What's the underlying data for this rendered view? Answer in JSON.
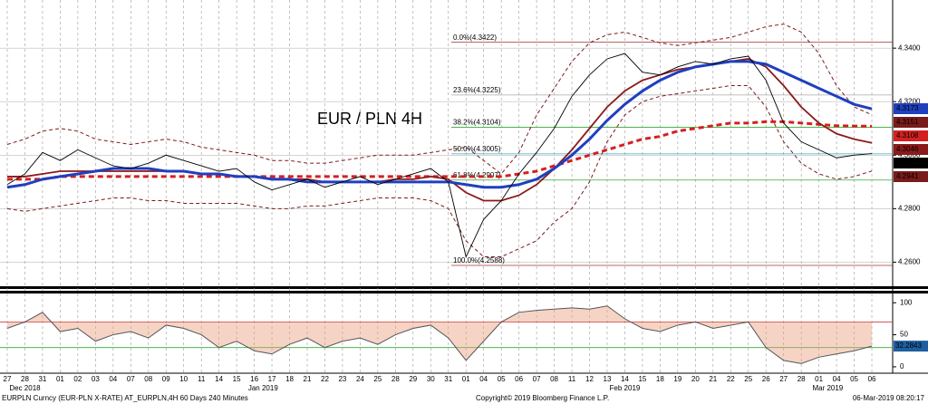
{
  "chart_data": {
    "type": "line",
    "title": "EUR / PLN 4H",
    "title_color": "#d40000",
    "categories": [
      "27",
      "28",
      "31",
      "01",
      "02",
      "03",
      "04",
      "07",
      "08",
      "09",
      "10",
      "11",
      "14",
      "15",
      "16",
      "17",
      "18",
      "21",
      "22",
      "23",
      "24",
      "25",
      "28",
      "29",
      "30",
      "31",
      "01",
      "04",
      "05",
      "06",
      "07",
      "08",
      "11",
      "12",
      "13",
      "14",
      "15",
      "18",
      "19",
      "20",
      "21",
      "22",
      "25",
      "26",
      "27",
      "28",
      "01",
      "04",
      "05",
      "06"
    ],
    "months": [
      "Dec 2018",
      "Jan 2019",
      "Feb 2019",
      "Mar 2019"
    ],
    "ylim": [
      4.251,
      4.358
    ],
    "yticks": [
      {
        "value": 4.26,
        "label": "4.2600"
      },
      {
        "value": 4.28,
        "label": "4.2800"
      },
      {
        "value": 4.3,
        "label": "4.3000"
      },
      {
        "value": 4.32,
        "label": "4.3200"
      },
      {
        "value": 4.34,
        "label": "4.3400"
      }
    ],
    "grid": true,
    "series": [
      {
        "color": "#7a1a1a",
        "style": "thin-dashed",
        "values": [
          4.304,
          4.306,
          4.309,
          4.31,
          4.309,
          4.306,
          4.305,
          4.304,
          4.305,
          4.306,
          4.305,
          4.303,
          4.302,
          4.301,
          4.3,
          4.298,
          4.298,
          4.297,
          4.297,
          4.298,
          4.299,
          4.3,
          4.3,
          4.3,
          4.301,
          4.302,
          4.303,
          4.298,
          4.293,
          4.301,
          4.315,
          4.325,
          4.335,
          4.342,
          4.345,
          4.346,
          4.344,
          4.342,
          4.341,
          4.342,
          4.343,
          4.344,
          4.346,
          4.348,
          4.349,
          4.346,
          4.338,
          4.326,
          4.318,
          4.3151
        ]
      },
      {
        "color": "#7a1a1a",
        "style": "thin-dashed",
        "values": [
          4.28,
          4.279,
          4.28,
          4.281,
          4.282,
          4.283,
          4.284,
          4.284,
          4.283,
          4.283,
          4.282,
          4.282,
          4.282,
          4.282,
          4.281,
          4.28,
          4.28,
          4.281,
          4.281,
          4.282,
          4.283,
          4.284,
          4.284,
          4.284,
          4.283,
          4.28,
          4.268,
          4.262,
          4.262,
          4.265,
          4.268,
          4.275,
          4.28,
          4.29,
          4.305,
          4.315,
          4.32,
          4.322,
          4.323,
          4.324,
          4.325,
          4.326,
          4.326,
          4.318,
          4.305,
          4.297,
          4.293,
          4.291,
          4.292,
          4.2941
        ]
      },
      {
        "color": "#d42020",
        "style": "thick-dashed",
        "values": [
          4.291,
          4.291,
          4.291,
          4.292,
          4.292,
          4.292,
          4.292,
          4.292,
          4.292,
          4.292,
          4.292,
          4.292,
          4.292,
          4.292,
          4.292,
          4.292,
          4.292,
          4.292,
          4.292,
          4.292,
          4.292,
          4.292,
          4.292,
          4.292,
          4.292,
          4.292,
          4.292,
          4.292,
          4.292,
          4.293,
          4.294,
          4.296,
          4.298,
          4.3,
          4.302,
          4.304,
          4.306,
          4.307,
          4.309,
          4.31,
          4.311,
          4.312,
          4.312,
          4.3125,
          4.3125,
          4.312,
          4.3115,
          4.311,
          4.3109,
          4.3108
        ]
      },
      {
        "color": "#8b1a1a",
        "style": "medium",
        "values": [
          4.292,
          4.292,
          4.293,
          4.294,
          4.294,
          4.294,
          4.294,
          4.294,
          4.294,
          4.294,
          4.294,
          4.293,
          4.293,
          4.292,
          4.292,
          4.291,
          4.291,
          4.291,
          4.29,
          4.29,
          4.29,
          4.29,
          4.291,
          4.291,
          4.292,
          4.291,
          4.286,
          4.283,
          4.283,
          4.285,
          4.289,
          4.295,
          4.302,
          4.31,
          4.318,
          4.324,
          4.328,
          4.33,
          4.332,
          4.333,
          4.334,
          4.335,
          4.336,
          4.333,
          4.326,
          4.318,
          4.312,
          4.308,
          4.306,
          4.3046
        ]
      },
      {
        "color": "#1f3fbf",
        "style": "thick",
        "values": [
          4.288,
          4.289,
          4.291,
          4.292,
          4.293,
          4.294,
          4.295,
          4.295,
          4.295,
          4.294,
          4.294,
          4.293,
          4.293,
          4.292,
          4.292,
          4.291,
          4.291,
          4.29,
          4.29,
          4.29,
          4.29,
          4.29,
          4.29,
          4.29,
          4.29,
          4.29,
          4.289,
          4.288,
          4.288,
          4.289,
          4.291,
          4.295,
          4.3,
          4.306,
          4.313,
          4.319,
          4.324,
          4.328,
          4.331,
          4.333,
          4.334,
          4.335,
          4.335,
          4.334,
          4.331,
          4.328,
          4.325,
          4.322,
          4.319,
          4.3173
        ]
      },
      {
        "color": "#000000",
        "style": "thin",
        "values": [
          4.289,
          4.293,
          4.301,
          4.298,
          4.302,
          4.299,
          4.296,
          4.295,
          4.297,
          4.3,
          4.298,
          4.296,
          4.294,
          4.295,
          4.29,
          4.287,
          4.289,
          4.291,
          4.288,
          4.29,
          4.292,
          4.289,
          4.291,
          4.293,
          4.295,
          4.29,
          4.262,
          4.276,
          4.283,
          4.293,
          4.301,
          4.31,
          4.322,
          4.33,
          4.336,
          4.338,
          4.331,
          4.33,
          4.333,
          4.335,
          4.334,
          4.336,
          4.337,
          4.328,
          4.312,
          4.305,
          4.302,
          4.299,
          4.3,
          4.3006
        ]
      }
    ],
    "fib_levels": [
      {
        "label": "0.0%(4.3422)",
        "value": 4.3422,
        "color": "#a03030"
      },
      {
        "label": "23.6%(4.3225)",
        "value": 4.3225,
        "color": "#aaaaaa"
      },
      {
        "label": "38.2%(4.3104)",
        "value": 4.3104,
        "color": "#33aa33"
      },
      {
        "label": "50.0%(4.3005)",
        "value": 4.3005,
        "color": "#55bbcc"
      },
      {
        "label": "61.8%(4.2907)",
        "value": 4.2907,
        "color": "#33aa33"
      },
      {
        "label": "100.0%(4.2588)",
        "value": 4.2588,
        "color": "#a03030"
      }
    ],
    "oscillator": {
      "ylim": [
        -10,
        113
      ],
      "yticks": [
        0,
        50,
        100
      ],
      "color": "#555555",
      "fill": "#e8a080",
      "levels": [
        {
          "value": 70,
          "color": "#d04040"
        },
        {
          "value": 30,
          "color": "#33aa33"
        }
      ],
      "values": [
        60,
        70,
        85,
        55,
        60,
        40,
        50,
        55,
        45,
        65,
        60,
        50,
        30,
        40,
        25,
        20,
        35,
        45,
        30,
        40,
        45,
        35,
        50,
        60,
        65,
        45,
        10,
        40,
        70,
        85,
        88,
        90,
        92,
        90,
        95,
        75,
        60,
        55,
        65,
        70,
        60,
        65,
        70,
        30,
        10,
        5,
        15,
        20,
        25,
        32.2843
      ]
    },
    "footer": {
      "source": "EURPLN Curncy (EUR-PLN X-RATE) AT_EURPLN,4H 60 Days 240 Minutes",
      "copyright": "Copyright© 2019 Bloomberg Finance L.P.",
      "timestamp": "06-Mar-2019 08:20:17"
    }
  }
}
